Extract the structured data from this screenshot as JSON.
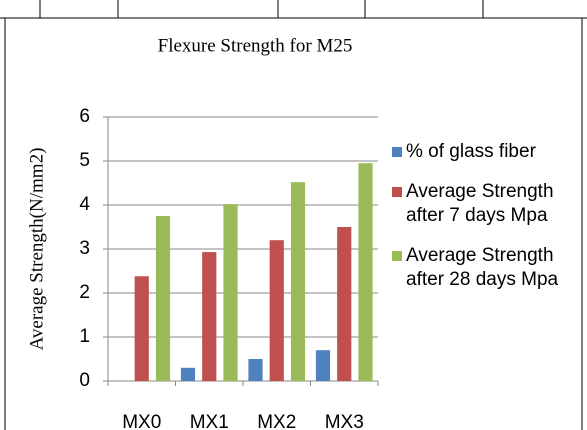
{
  "chart_data": {
    "type": "bar",
    "title": "Flexure Strength for M25",
    "y_label": "Average  Strength(N/mm2)",
    "categories": [
      "MX0",
      "MX1",
      "MX2",
      "MX3"
    ],
    "series": [
      {
        "name": "% of glass fiber",
        "color": "#4f81bd",
        "values": [
          0,
          0.3,
          0.5,
          0.7
        ]
      },
      {
        "name": "Average Strength after 7 days Mpa",
        "color": "#c0504d",
        "values": [
          2.38,
          2.93,
          3.2,
          3.5
        ]
      },
      {
        "name": "Average Strength after 28 days Mpa",
        "color": "#9bbb59",
        "values": [
          3.75,
          4.02,
          4.52,
          4.95
        ]
      }
    ],
    "ylim": [
      0,
      6
    ],
    "yticks": [
      0,
      1,
      2,
      3,
      4,
      5,
      6
    ],
    "grid": true,
    "legend": "right"
  }
}
